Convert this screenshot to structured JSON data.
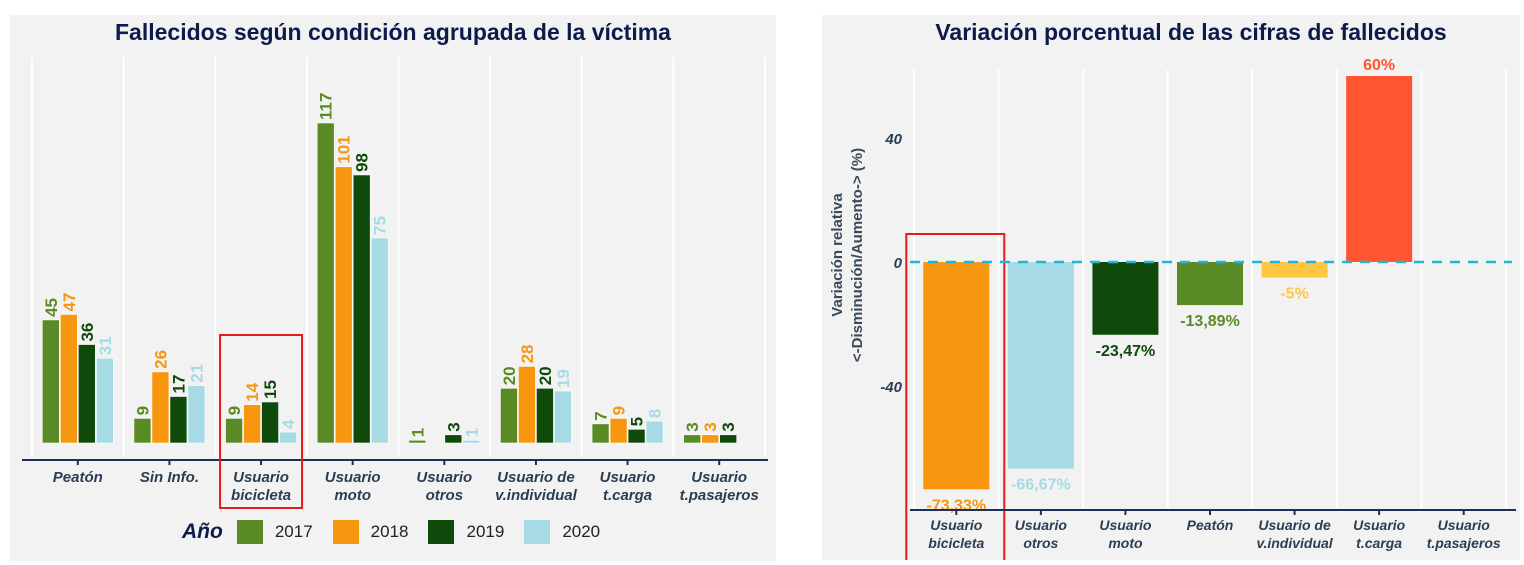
{
  "chart_data": [
    {
      "type": "bar",
      "title": "Fallecidos según condición agrupada de la víctima",
      "xlabel": "",
      "ylabel": "",
      "categories": [
        "Peatón",
        "Sin Info.",
        "Usuario bicicleta",
        "Usuario moto",
        "Usuario otros",
        "Usuario de v.individual",
        "Usuario t.carga",
        "Usuario t.pasajeros"
      ],
      "category_lines": [
        [
          "Peatón"
        ],
        [
          "Sin Info."
        ],
        [
          "Usuario",
          "bicicleta"
        ],
        [
          "Usuario",
          "moto"
        ],
        [
          "Usuario",
          "otros"
        ],
        [
          "Usuario de",
          "v.individual"
        ],
        [
          "Usuario",
          "t.carga"
        ],
        [
          "Usuario",
          "t.pasajeros"
        ]
      ],
      "series": [
        {
          "name": "2017",
          "color": "#5a8a26",
          "values": [
            45,
            9,
            9,
            117,
            1,
            20,
            7,
            3
          ]
        },
        {
          "name": "2018",
          "color": "#f7960f",
          "values": [
            47,
            26,
            14,
            101,
            null,
            28,
            9,
            3
          ]
        },
        {
          "name": "2019",
          "color": "#0f4a0b",
          "values": [
            36,
            17,
            15,
            98,
            3,
            20,
            5,
            3
          ]
        },
        {
          "name": "2020",
          "color": "#a6dbe5",
          "values": [
            31,
            21,
            4,
            75,
            1,
            19,
            8,
            null
          ]
        }
      ],
      "legend": {
        "title": "Año",
        "position": "bottom"
      },
      "highlighted_category": "Usuario bicicleta",
      "ylim": [
        0,
        125
      ],
      "grid": false
    },
    {
      "type": "bar",
      "title": "Variación porcentual de las cifras de fallecidos",
      "xlabel": "",
      "ylabel": "Variación relativa\n<-Disminución/Aumento-> (%)",
      "ylabel_lines": [
        "Variación relativa",
        "<-Disminución/Aumento-> (%)"
      ],
      "categories": [
        "Usuario bicicleta",
        "Usuario otros",
        "Usuario moto",
        "Peatón",
        "Usuario de v.individual",
        "Usuario t.carga",
        "Usuario t.pasajeros"
      ],
      "category_lines": [
        [
          "Usuario",
          "bicicleta"
        ],
        [
          "Usuario",
          "otros"
        ],
        [
          "Usuario",
          "moto"
        ],
        [
          "Peatón"
        ],
        [
          "Usuario de",
          "v.individual"
        ],
        [
          "Usuario",
          "t.carga"
        ],
        [
          "Usuario",
          "t.pasajeros"
        ]
      ],
      "values": [
        -73.33,
        -66.67,
        -23.47,
        -13.89,
        -5,
        60,
        0
      ],
      "value_labels": [
        "-73,33%",
        "-66,67%",
        "-23,47%",
        "-13,89%",
        "-5%",
        "60%",
        ""
      ],
      "colors": [
        "#f7960f",
        "#a6dbe5",
        "#0f4a0b",
        "#5a8a26",
        "#fdc743",
        "#ff5632",
        "#f2f2f2"
      ],
      "yticks": [
        -40,
        0,
        40
      ],
      "ylim": [
        -80,
        65
      ],
      "reference_line": {
        "value": 0,
        "style": "dashed",
        "color": "#22b5d8"
      },
      "highlighted_category": "Usuario bicicleta",
      "grid": false
    }
  ]
}
